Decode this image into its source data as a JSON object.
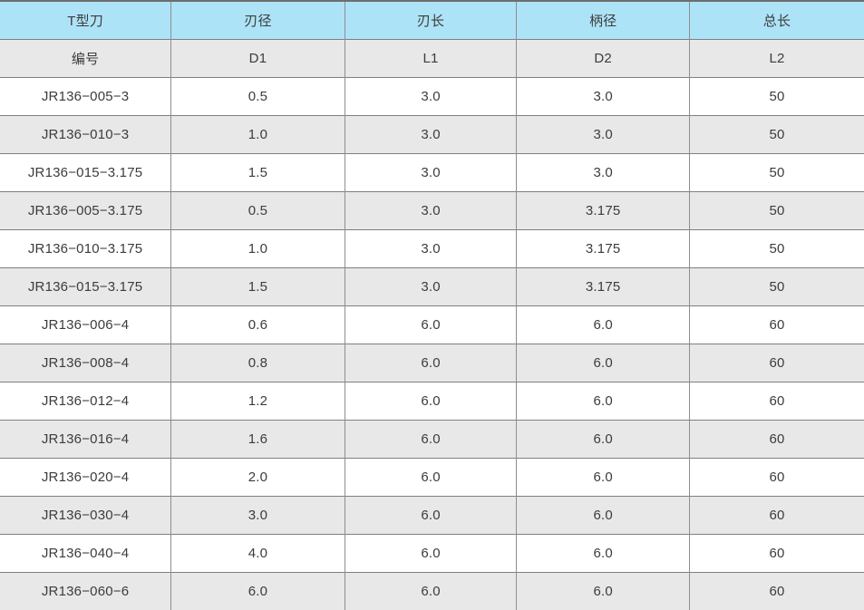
{
  "colors": {
    "header_blue": "#ade3f7",
    "row_gray": "#e8e8e8",
    "row_white": "#ffffff",
    "grid_line": "#7f7f7f",
    "text": "#3c3c3c"
  },
  "table": {
    "header_row_1": [
      "T型刀",
      "刃径",
      "刃长",
      "柄径",
      "总长"
    ],
    "header_row_2": [
      "编号",
      "D1",
      "L1",
      "D2",
      "L2"
    ],
    "rows": [
      [
        "JR136−005−3",
        "0.5",
        "3.0",
        "3.0",
        "50"
      ],
      [
        "JR136−010−3",
        "1.0",
        "3.0",
        "3.0",
        "50"
      ],
      [
        "JR136−015−3.175",
        "1.5",
        "3.0",
        "3.0",
        "50"
      ],
      [
        "JR136−005−3.175",
        "0.5",
        "3.0",
        "3.175",
        "50"
      ],
      [
        "JR136−010−3.175",
        "1.0",
        "3.0",
        "3.175",
        "50"
      ],
      [
        "JR136−015−3.175",
        "1.5",
        "3.0",
        "3.175",
        "50"
      ],
      [
        "JR136−006−4",
        "0.6",
        "6.0",
        "6.0",
        "60"
      ],
      [
        "JR136−008−4",
        "0.8",
        "6.0",
        "6.0",
        "60"
      ],
      [
        "JR136−012−4",
        "1.2",
        "6.0",
        "6.0",
        "60"
      ],
      [
        "JR136−016−4",
        "1.6",
        "6.0",
        "6.0",
        "60"
      ],
      [
        "JR136−020−4",
        "2.0",
        "6.0",
        "6.0",
        "60"
      ],
      [
        "JR136−030−4",
        "3.0",
        "6.0",
        "6.0",
        "60"
      ],
      [
        "JR136−040−4",
        "4.0",
        "6.0",
        "6.0",
        "60"
      ],
      [
        "JR136−060−6",
        "6.0",
        "6.0",
        "6.0",
        "60"
      ]
    ]
  }
}
